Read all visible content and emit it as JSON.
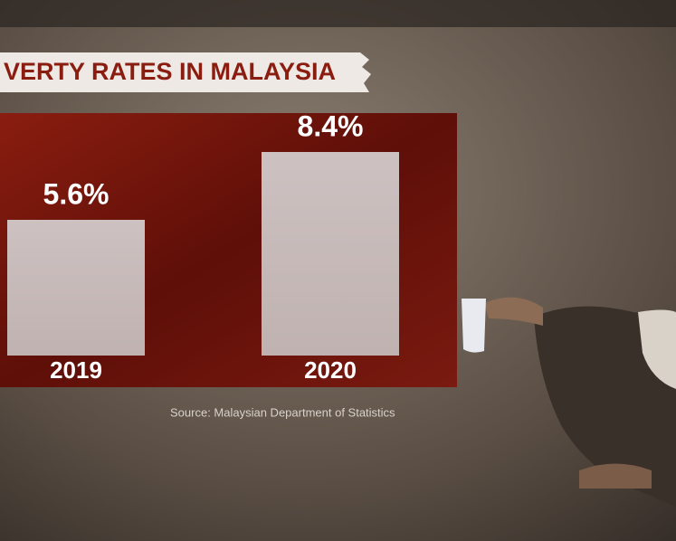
{
  "chart_data": {
    "type": "bar",
    "title": "VERTY RATES IN MALAYSIA",
    "categories": [
      "2019",
      "2020"
    ],
    "values": [
      5.6,
      8.4
    ],
    "value_labels": [
      "5.6%",
      "8.4%"
    ],
    "color": "#c8bcbb",
    "source": "Source: Malaysian Department of Statistics"
  }
}
